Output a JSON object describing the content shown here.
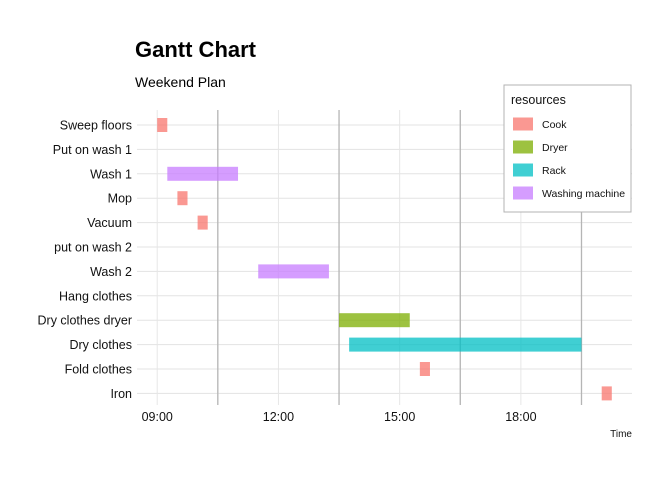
{
  "chart_data": {
    "type": "gantt",
    "title": "Gantt Chart",
    "subtitle": "Weekend Plan",
    "xlabel": "Time",
    "ylabel": "",
    "x_ticks": [
      "09:00",
      "12:00",
      "15:00",
      "18:00"
    ],
    "xlim": [
      "08:30",
      "20:45"
    ],
    "vlines": [
      "10:30",
      "13:30",
      "16:30",
      "19:30"
    ],
    "legend_title": "resources",
    "legend_position": "top-right",
    "resources": [
      {
        "name": "Cook",
        "color": "#F8766D"
      },
      {
        "name": "Dryer",
        "color": "#7CAE00"
      },
      {
        "name": "Rack",
        "color": "#00BFC4"
      },
      {
        "name": "Washing machine",
        "color": "#C77CFF"
      }
    ],
    "tasks": [
      {
        "name": "Sweep floors",
        "resource": "Cook",
        "start": "09:00",
        "end": "09:15"
      },
      {
        "name": "Put on wash 1",
        "resource": "",
        "start": "",
        "end": ""
      },
      {
        "name": "Wash 1",
        "resource": "Washing machine",
        "start": "09:15",
        "end": "11:00"
      },
      {
        "name": "Mop",
        "resource": "Cook",
        "start": "09:30",
        "end": "09:45"
      },
      {
        "name": "Vacuum",
        "resource": "Cook",
        "start": "10:00",
        "end": "10:15"
      },
      {
        "name": "put on wash 2",
        "resource": "",
        "start": "",
        "end": ""
      },
      {
        "name": "Wash 2",
        "resource": "Washing machine",
        "start": "11:30",
        "end": "13:15"
      },
      {
        "name": "Hang clothes",
        "resource": "",
        "start": "",
        "end": ""
      },
      {
        "name": "Dry clothes dryer",
        "resource": "Dryer",
        "start": "13:30",
        "end": "15:15"
      },
      {
        "name": "Dry clothes",
        "resource": "Rack",
        "start": "13:45",
        "end": "19:30"
      },
      {
        "name": "Fold clothes",
        "resource": "Cook",
        "start": "15:30",
        "end": "15:45"
      },
      {
        "name": "Iron",
        "resource": "Cook",
        "start": "20:00",
        "end": "20:15"
      }
    ]
  }
}
